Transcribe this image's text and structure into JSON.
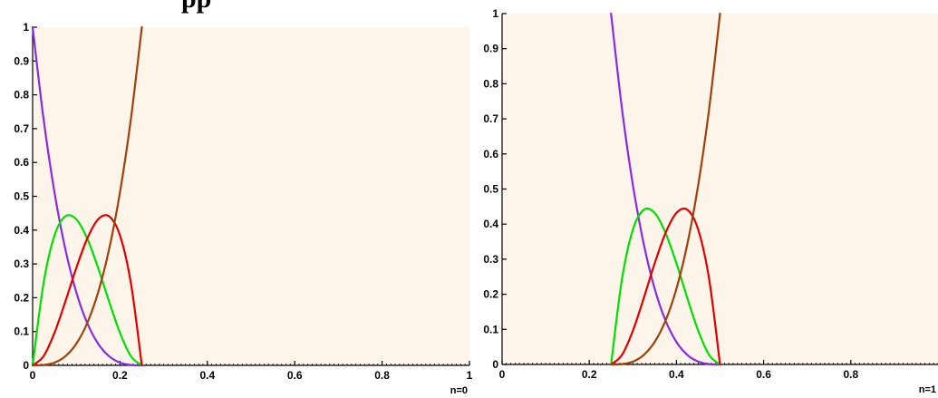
{
  "title_fragment": "pp",
  "chart_data": [
    {
      "type": "line",
      "corner_label": "n=0",
      "xlim": [
        0,
        1
      ],
      "ylim": [
        0,
        1
      ],
      "x_ticks": [
        0,
        0.2,
        0.4,
        0.6,
        0.8,
        1
      ],
      "x_tick_labels": [
        "0",
        "0.2",
        "0.4",
        "0.6",
        "0.8",
        "1"
      ],
      "y_ticks": [
        0,
        0.1,
        0.2,
        0.3,
        0.4,
        0.5,
        0.6,
        0.7,
        0.8,
        0.9,
        1
      ],
      "y_tick_labels": [
        "0",
        "0.1",
        "0.2",
        "0.3",
        "0.4",
        "0.5",
        "0.6",
        "0.7",
        "0.8",
        "0.9",
        "1"
      ],
      "plot_background": "#fdf5ea",
      "series": [
        {
          "color": "#8a2be2",
          "x": [
            0,
            0.025,
            0.05,
            0.075,
            0.1,
            0.125,
            0.15,
            0.175,
            0.2,
            0.225,
            0.25
          ],
          "y": [
            1,
            0.729,
            0.512,
            0.343,
            0.216,
            0.125,
            0.064,
            0.027,
            0.008,
            0.001,
            0
          ]
        },
        {
          "color": "#00e000",
          "x": [
            0,
            0.025,
            0.05,
            0.075,
            0.1,
            0.125,
            0.15,
            0.175,
            0.2,
            0.225,
            0.25
          ],
          "y": [
            0,
            0.243,
            0.384,
            0.441,
            0.432,
            0.375,
            0.288,
            0.189,
            0.096,
            0.027,
            0
          ]
        },
        {
          "color": "#e00000",
          "x": [
            0,
            0.025,
            0.05,
            0.075,
            0.1,
            0.125,
            0.15,
            0.175,
            0.2,
            0.225,
            0.25
          ],
          "y": [
            0,
            0.027,
            0.096,
            0.189,
            0.288,
            0.375,
            0.432,
            0.441,
            0.384,
            0.243,
            0
          ]
        },
        {
          "color": "#a0400a",
          "x": [
            0,
            0.025,
            0.05,
            0.075,
            0.1,
            0.125,
            0.15,
            0.175,
            0.2,
            0.225,
            0.25
          ],
          "y": [
            0,
            0.001,
            0.008,
            0.027,
            0.064,
            0.125,
            0.216,
            0.343,
            0.512,
            0.729,
            1
          ]
        }
      ]
    },
    {
      "type": "line",
      "corner_label": "n=1",
      "xlim": [
        0,
        1
      ],
      "ylim": [
        0,
        1
      ],
      "x_ticks": [
        0,
        0.2,
        0.4,
        0.6,
        0.8
      ],
      "x_tick_labels": [
        "0",
        "0.2",
        "0.4",
        "0.6",
        "0.8"
      ],
      "y_ticks": [
        0,
        0.1,
        0.2,
        0.3,
        0.4,
        0.5,
        0.6,
        0.7,
        0.8,
        0.9,
        1
      ],
      "y_tick_labels": [
        "0",
        "0.1",
        "0.2",
        "0.3",
        "0.4",
        "0.5",
        "0.6",
        "0.7",
        "0.8",
        "0.9",
        "1"
      ],
      "plot_background": "#fdf5ea",
      "series": [
        {
          "color": "#8a2be2",
          "x": [
            0.25,
            0.275,
            0.3,
            0.325,
            0.35,
            0.375,
            0.4,
            0.425,
            0.45,
            0.475,
            0.5
          ],
          "y": [
            1,
            0.729,
            0.512,
            0.343,
            0.216,
            0.125,
            0.064,
            0.027,
            0.008,
            0.001,
            0
          ]
        },
        {
          "color": "#00e000",
          "x": [
            0.25,
            0.275,
            0.3,
            0.325,
            0.35,
            0.375,
            0.4,
            0.425,
            0.45,
            0.475,
            0.5
          ],
          "y": [
            0,
            0.243,
            0.384,
            0.441,
            0.432,
            0.375,
            0.288,
            0.189,
            0.096,
            0.027,
            0
          ]
        },
        {
          "color": "#e00000",
          "x": [
            0.25,
            0.275,
            0.3,
            0.325,
            0.35,
            0.375,
            0.4,
            0.425,
            0.45,
            0.475,
            0.5
          ],
          "y": [
            0,
            0.027,
            0.096,
            0.189,
            0.288,
            0.375,
            0.432,
            0.441,
            0.384,
            0.243,
            0
          ]
        },
        {
          "color": "#a0400a",
          "x": [
            0.25,
            0.275,
            0.3,
            0.325,
            0.35,
            0.375,
            0.4,
            0.425,
            0.45,
            0.475,
            0.5
          ],
          "y": [
            0,
            0.001,
            0.008,
            0.027,
            0.064,
            0.125,
            0.216,
            0.343,
            0.512,
            0.729,
            1
          ]
        }
      ]
    }
  ]
}
